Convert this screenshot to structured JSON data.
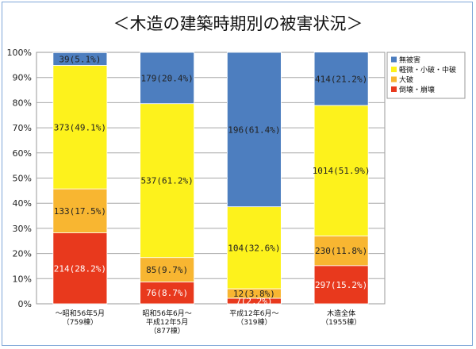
{
  "chart_data": {
    "type": "bar",
    "stacked": "percent",
    "title": "＜木造の建築時期別の被害状況＞",
    "categories": [
      [
        "～昭和56年5月",
        "（759棟）"
      ],
      [
        "昭和56年6月～",
        "平成12年5月",
        "（877棟）"
      ],
      [
        "平成12年6月～",
        "（319棟）"
      ],
      [
        "木造全体",
        "（1955棟）"
      ]
    ],
    "series": [
      {
        "name": "倒壊・崩壊",
        "color": "#e8391d",
        "text_color": "#ffffff",
        "counts": [
          214,
          76,
          7,
          297
        ],
        "values": [
          28.2,
          8.7,
          2.2,
          15.2
        ],
        "labels": [
          "214(28.2%)",
          "76(8.7%)",
          "7(2.2%)",
          "297(15.2%)"
        ]
      },
      {
        "name": "大破",
        "color": "#f8b631",
        "text_color": "#222222",
        "counts": [
          133,
          85,
          12,
          230
        ],
        "values": [
          17.5,
          9.7,
          3.8,
          11.8
        ],
        "labels": [
          "133(17.5%)",
          "85(9.7%)",
          "12(3.8%)",
          "230(11.8%)"
        ]
      },
      {
        "name": "軽微・小破・中破",
        "color": "#fdf21c",
        "text_color": "#222222",
        "counts": [
          373,
          537,
          104,
          1014
        ],
        "values": [
          49.1,
          61.2,
          32.6,
          51.9
        ],
        "labels": [
          "373(49.1%)",
          "537(61.2%)",
          "104(32.6%)",
          "1014(51.9%)"
        ]
      },
      {
        "name": "無被害",
        "color": "#4d7ebf",
        "text_color": "#222222",
        "counts": [
          39,
          179,
          196,
          414
        ],
        "values": [
          5.1,
          20.4,
          61.4,
          21.2
        ],
        "labels": [
          "39(5.1%)",
          "179(20.4%)",
          "196(61.4%)",
          "414(21.2%)"
        ]
      }
    ],
    "legend_order": [
      "無被害",
      "軽微・小破・中破",
      "大破",
      "倒壊・崩壊"
    ],
    "ylim": [
      0,
      100
    ],
    "yticks": [
      "0%",
      "10%",
      "20%",
      "30%",
      "40%",
      "50%",
      "60%",
      "70%",
      "80%",
      "90%",
      "100%"
    ],
    "grid": true,
    "legend_position": "right"
  }
}
